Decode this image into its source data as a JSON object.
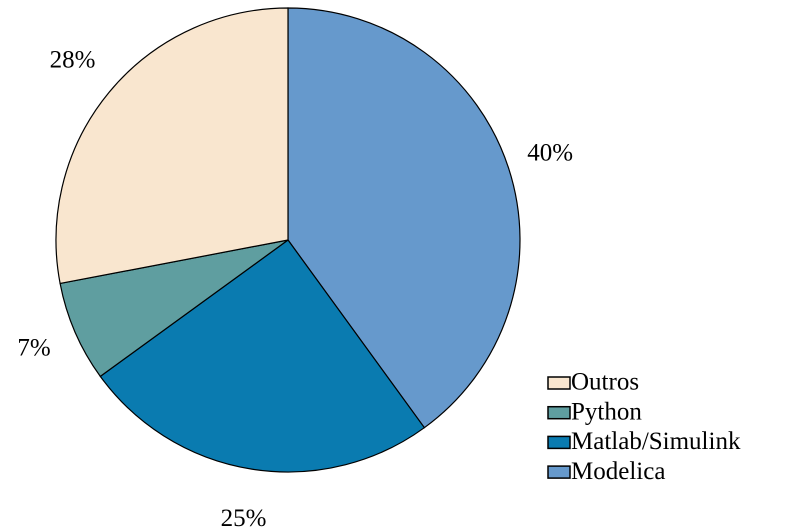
{
  "chart_data": {
    "type": "pie",
    "categories": [
      "Modelica",
      "Matlab/Simulink",
      "Python",
      "Outros"
    ],
    "values": [
      40,
      25,
      7,
      28
    ],
    "value_labels": [
      "40%",
      "25%",
      "7%",
      "28%"
    ],
    "colors": [
      "#6699cc",
      "#0a7bb0",
      "#5f9ea0",
      "#f9e6cf"
    ],
    "legend": "lower right"
  }
}
